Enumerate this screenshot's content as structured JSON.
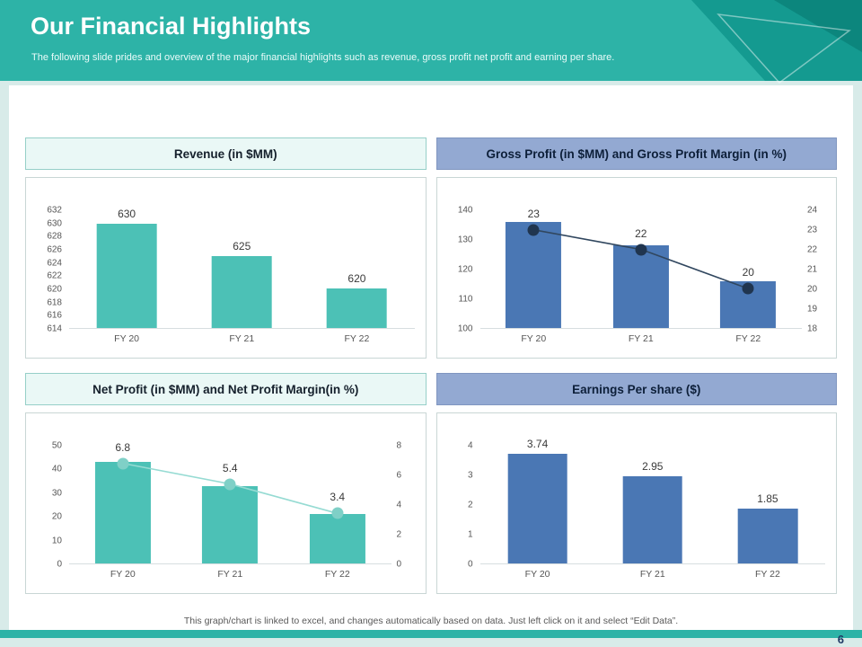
{
  "slide": {
    "title": "Our Financial Highlights",
    "subtitle": "The following slide prides and overview of the major financial highlights such as revenue, gross profit net profit and earning per share.",
    "footer_note": "This graph/chart is linked to excel, and changes automatically based on data. Just left click on it and select “Edit Data”.",
    "page_number": "6"
  },
  "colors": {
    "accent_teal": "#2db3a7",
    "accent_teal_dark": "#12978d",
    "bar_teal": "#4cc1b6",
    "bar_blue": "#4a77b4",
    "header_fill_teal": "#eaf8f6",
    "header_fill_blue": "#93a9d2"
  },
  "chart_data": [
    {
      "type": "bar",
      "title": "Revenue (in $MM)",
      "header_theme": "teal",
      "categories": [
        "FY 20",
        "FY 21",
        "FY 22"
      ],
      "series": [
        {
          "name": "Revenue",
          "type": "bar",
          "values": [
            630,
            625,
            620
          ]
        }
      ],
      "data_labels": [
        "630",
        "625",
        "620"
      ],
      "label_anchor": "bar",
      "bar_color": "#4cc1b6",
      "left_axis": {
        "labels": [
          "632",
          "630",
          "628",
          "626",
          "624",
          "622",
          "620",
          "618",
          "616",
          "614"
        ]
      },
      "bar_range": [
        614,
        632
      ]
    },
    {
      "type": "bar+line",
      "title": "Gross Profit (in $MM) and Gross Profit Margin (in %)",
      "header_theme": "blue",
      "categories": [
        "FY 20",
        "FY 21",
        "FY 22"
      ],
      "series": [
        {
          "name": "Gross Profit ($MM)",
          "type": "bar",
          "values": [
            136,
            128,
            116
          ]
        },
        {
          "name": "Gross Profit Margin (%)",
          "type": "line",
          "values": [
            23,
            22,
            20
          ]
        }
      ],
      "data_labels": [
        "23",
        "22",
        "20"
      ],
      "label_anchor": "line",
      "bar_color": "#4a77b4",
      "line_color": "#31475f",
      "dot_color": "#20354f",
      "left_axis": {
        "labels": [
          "140",
          "130",
          "120",
          "110",
          "100"
        ]
      },
      "right_axis": {
        "labels": [
          "24",
          "23",
          "22",
          "21",
          "20",
          "19",
          "18"
        ]
      },
      "bar_range": [
        100,
        140
      ],
      "line_range": [
        18,
        24
      ]
    },
    {
      "type": "bar+line",
      "title": "Net Profit (in $MM) and Net Profit Margin(in %)",
      "header_theme": "teal",
      "categories": [
        "FY 20",
        "FY 21",
        "FY 22"
      ],
      "series": [
        {
          "name": "Net Profit ($MM)",
          "type": "bar",
          "values": [
            43,
            33,
            21
          ]
        },
        {
          "name": "Net Profit Margin (%)",
          "type": "line",
          "values": [
            6.8,
            5.4,
            3.4
          ]
        }
      ],
      "data_labels": [
        "6.8",
        "5.4",
        "3.4"
      ],
      "label_anchor": "line",
      "bar_color": "#4cc1b6",
      "line_color": "#96dbd3",
      "dot_color": "#7fd0c7",
      "left_axis": {
        "labels": [
          "50",
          "40",
          "30",
          "20",
          "10",
          "0"
        ]
      },
      "right_axis": {
        "labels": [
          "8",
          "6",
          "4",
          "2",
          "0"
        ]
      },
      "bar_range": [
        0,
        50
      ],
      "line_range": [
        0,
        8
      ]
    },
    {
      "type": "bar",
      "title": "Earnings Per share ($)",
      "header_theme": "blue",
      "categories": [
        "FY 20",
        "FY 21",
        "FY 22"
      ],
      "series": [
        {
          "name": "EPS",
          "type": "bar",
          "values": [
            3.74,
            2.95,
            1.85
          ]
        }
      ],
      "data_labels": [
        "3.74",
        "2.95",
        "1.85"
      ],
      "label_anchor": "bar",
      "bar_color": "#4a77b4",
      "left_axis": {
        "labels": [
          "4",
          "3",
          "2",
          "1",
          "0"
        ]
      },
      "bar_range": [
        0,
        4
      ]
    }
  ]
}
